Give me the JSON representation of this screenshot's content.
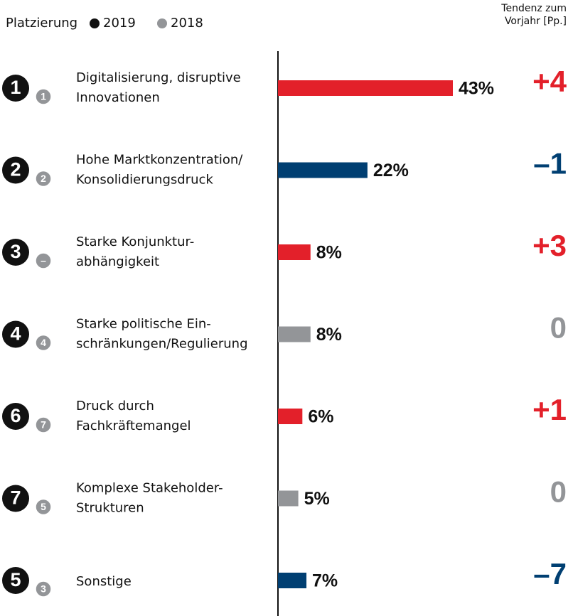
{
  "chart_data": {
    "type": "bar",
    "header": "Platzierung",
    "legend": [
      {
        "name": "2019",
        "color": "#111111"
      },
      {
        "name": "2018",
        "color": "#939598"
      }
    ],
    "trend_title": [
      "Tendenz zum",
      "Vorjahr [Pp.]"
    ],
    "rows": [
      {
        "rank": 1,
        "prev_rank": 1,
        "label": [
          "Digitalisierung, disruptive",
          "Innovationen"
        ],
        "value": 43,
        "value_label": "43%",
        "trend": 4,
        "trend_label": "+4",
        "color": "#e3202a"
      },
      {
        "rank": 2,
        "prev_rank": 2,
        "label": [
          "Hohe Marktkonzentration/",
          "Konsolidierungsdruck"
        ],
        "value": 22,
        "value_label": "22%",
        "trend": -1,
        "trend_label": "–1",
        "color": "#003f72"
      },
      {
        "rank": 3,
        "prev_rank": "–",
        "label": [
          "Starke Konjunktur-",
          "abhängigkeit"
        ],
        "value": 8,
        "value_label": "8%",
        "trend": 3,
        "trend_label": "+3",
        "color": "#e3202a"
      },
      {
        "rank": 4,
        "prev_rank": 4,
        "label": [
          "Starke politische Ein-",
          "schränkungen/Regulierung"
        ],
        "value": 8,
        "value_label": "8%",
        "trend": 0,
        "trend_label": "0",
        "color": "#939598"
      },
      {
        "rank": 6,
        "prev_rank": 7,
        "label": [
          "Druck durch",
          "Fachkräftemangel"
        ],
        "value": 6,
        "value_label": "6%",
        "trend": 1,
        "trend_label": "+1",
        "color": "#e3202a"
      },
      {
        "rank": 7,
        "prev_rank": 5,
        "label": [
          "Komplexe Stakeholder-",
          "Strukturen"
        ],
        "value": 5,
        "value_label": "5%",
        "trend": 0,
        "trend_label": "0",
        "color": "#939598"
      },
      {
        "rank": 5,
        "prev_rank": 3,
        "label": [
          "Sonstige"
        ],
        "value": 7,
        "value_label": "7%",
        "trend": -7,
        "trend_label": "–7",
        "color": "#003f72"
      }
    ]
  }
}
